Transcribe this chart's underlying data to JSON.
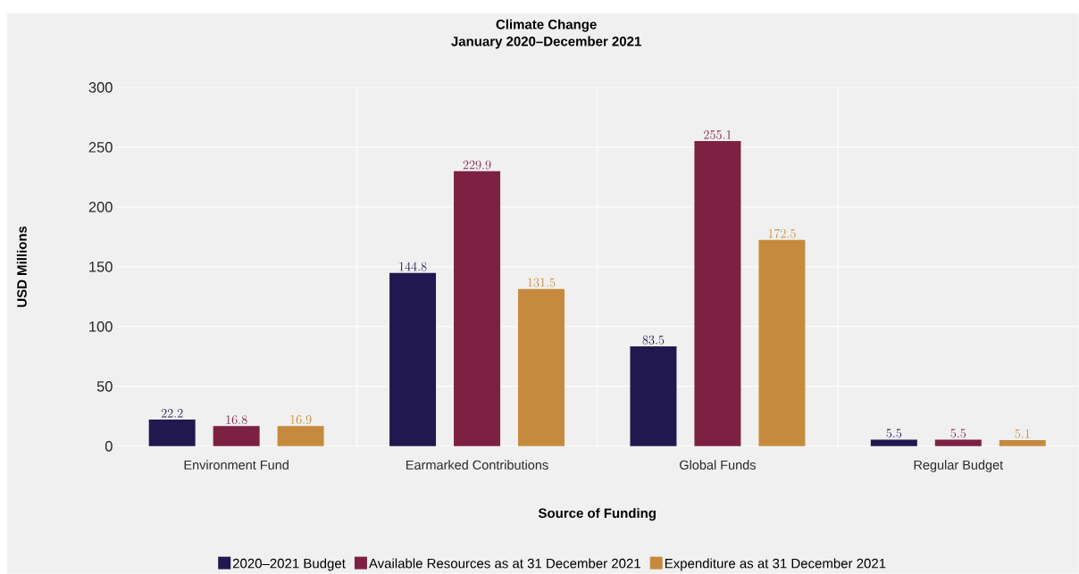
{
  "chart_data": {
    "type": "bar",
    "title": "Climate Change\nJanuary 2020–December 2021",
    "xlabel": "Source of Funding",
    "ylabel": "USD Millions",
    "categories": [
      "Environment Fund",
      "Earmarked Contributions",
      "Global Funds",
      "Regular Budget"
    ],
    "series": [
      {
        "name": "2020–2021 Budget",
        "color": "#21184f",
        "values": [
          22.2,
          144.8,
          83.5,
          5.5
        ]
      },
      {
        "name": "Available Resources as at 31 December 2021",
        "color": "#7d2143",
        "values": [
          16.8,
          229.9,
          255.1,
          5.5
        ]
      },
      {
        "name": "Expenditure as at 31 December 2021",
        "color": "#c68a3e",
        "values": [
          16.9,
          131.5,
          172.5,
          5.1
        ]
      }
    ],
    "ylim": [
      0,
      300
    ],
    "yticks": [
      0,
      50,
      100,
      150,
      200,
      250,
      300
    ],
    "grid": true,
    "legend": "bottom",
    "data_labels": true
  }
}
